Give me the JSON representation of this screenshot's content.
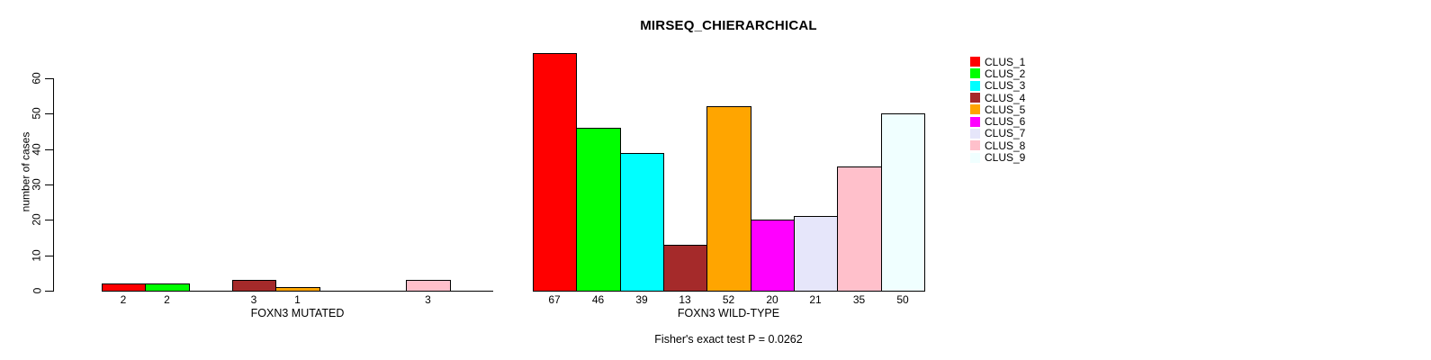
{
  "chart_data": {
    "type": "bar",
    "title": "MIRSEQ_CHIERARCHICAL",
    "ylabel": "number of cases",
    "ylim": [
      0,
      60
    ],
    "yticks": [
      0,
      10,
      20,
      30,
      40,
      50,
      60
    ],
    "grid": false,
    "legend_position": "right",
    "categories": [
      "CLUS_1",
      "CLUS_2",
      "CLUS_3",
      "CLUS_4",
      "CLUS_5",
      "CLUS_6",
      "CLUS_7",
      "CLUS_8",
      "CLUS_9"
    ],
    "colors": [
      "#FF0000",
      "#00FF00",
      "#00FFFF",
      "#A52A2A",
      "#FFA500",
      "#FF00FF",
      "#E6E6FA",
      "#FFC0CB",
      "#F0FFFF"
    ],
    "bar_border_color": "#000000",
    "panels": [
      {
        "xlabel": "FOXN3 MUTATED",
        "values": [
          2,
          2,
          0,
          3,
          1,
          0,
          0,
          3,
          0
        ],
        "bar_labels": [
          "2",
          "2",
          "",
          "3",
          "1",
          "",
          "",
          "3",
          ""
        ]
      },
      {
        "xlabel": "FOXN3 WILD-TYPE",
        "values": [
          67,
          46,
          39,
          13,
          52,
          20,
          21,
          35,
          50
        ],
        "bar_labels": [
          "67",
          "46",
          "39",
          "13",
          "52",
          "20",
          "21",
          "35",
          "50"
        ]
      }
    ],
    "annotation": "Fisher's exact test P = 0.0262"
  }
}
